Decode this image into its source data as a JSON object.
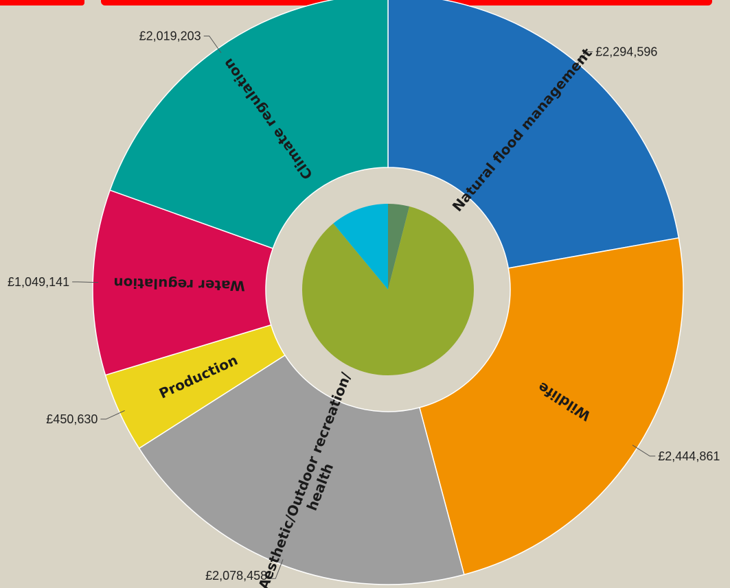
{
  "chart_data": {
    "type": "pie",
    "outer_ring": [
      {
        "label": "Natural flood management",
        "value_text": "£2,294,596",
        "value": 2294596,
        "color": "#1e6eb8"
      },
      {
        "label": "Wildlife",
        "value_text": "£2,444,861",
        "value": 2444861,
        "color": "#f29100"
      },
      {
        "label": "Aesthetic/Outdoor recreation/ health",
        "label_lines": [
          "Aesthetic/Outdoor recreation/",
          "health"
        ],
        "value_text": "£2,078,458",
        "value": 2078458,
        "color": "#9e9e9e"
      },
      {
        "label": "Production",
        "value_text": "£450,630",
        "value": 450630,
        "color": "#ecd41c"
      },
      {
        "label": "Water regulation",
        "value_text": "£1,049,141",
        "value": 1049141,
        "color": "#d90c50"
      },
      {
        "label": "Climate regulation",
        "value_text": "£2,019,203",
        "value": 2019203,
        "color": "#009e96"
      }
    ],
    "inner_pie": [
      {
        "share": 0.04,
        "color": "#5b8a5e"
      },
      {
        "share": 0.85,
        "color": "#93aa2f"
      },
      {
        "share": 0.11,
        "color": "#00b4d8"
      }
    ]
  }
}
